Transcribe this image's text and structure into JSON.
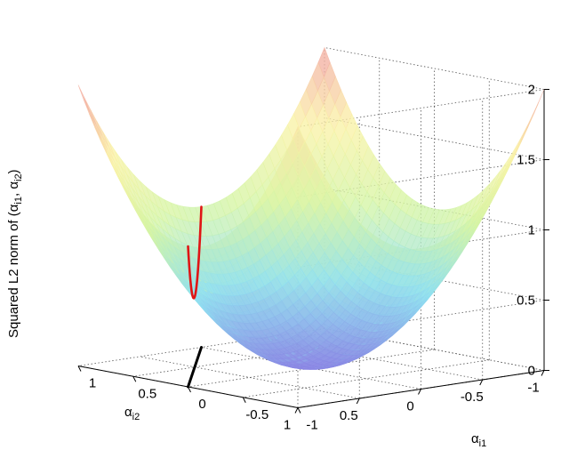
{
  "chart_data": {
    "type": "surface",
    "surface_function": "z = x^2 + y^2",
    "x_range": [
      -1,
      1
    ],
    "y_range": [
      -1,
      1
    ],
    "z_range": [
      0,
      2
    ],
    "grid": true,
    "colormap": [
      "#8a86e4",
      "#8fe0f0",
      "#d6f5a4",
      "#fbf2a6",
      "#f2a2a2"
    ],
    "x_ticks": [
      "-1",
      "-0.5",
      "0",
      "0.5",
      "1"
    ],
    "y_ticks": [
      "-1",
      "-0.5",
      "0",
      "0.5",
      "1"
    ],
    "z_ticks": [
      "0",
      "0.5",
      "1",
      "1.5",
      "2"
    ],
    "x_label_base": "α",
    "x_label_sub": "i1",
    "y_label_base": "α",
    "y_label_sub": "i2",
    "z_label": {
      "prefix": "Squared L2 norm of (",
      "a": "α",
      "a_sub": "i1",
      "sep": ", ",
      "b": "α",
      "b_sub": "i2",
      "suffix": ")"
    },
    "constraint_line": {
      "color": "#000000",
      "description_points": [
        [
          1,
          0
        ],
        [
          0,
          1
        ]
      ]
    },
    "norm_curve": {
      "color": "#e01515",
      "function": "z = x^2 + (1-x)^2"
    }
  }
}
